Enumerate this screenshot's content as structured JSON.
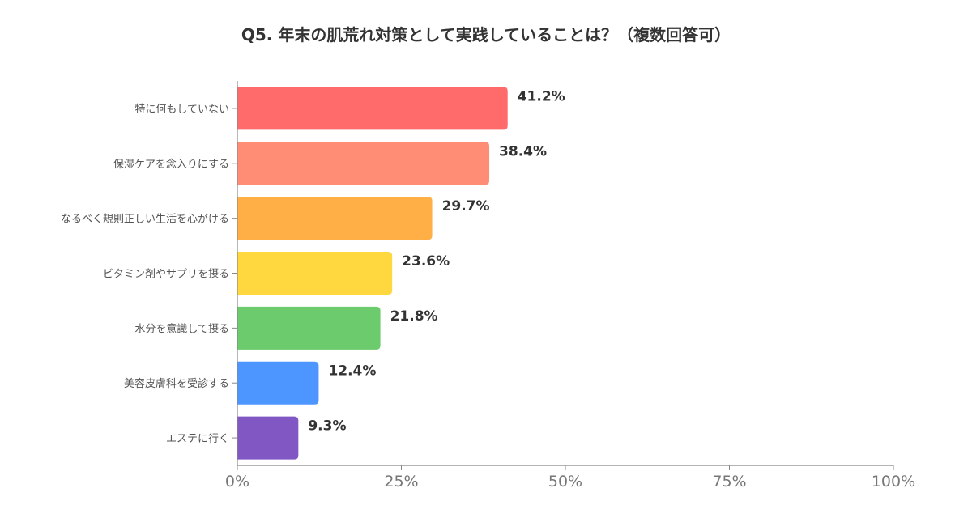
{
  "chart_data": {
    "type": "bar",
    "orientation": "horizontal",
    "title": "Q5. 年末の肌荒れ対策として実践していることは？（複数回答可）",
    "categories": [
      "特に何もしていない",
      "保湿ケアを念入りにする",
      "なるべく規則正しい生活を心がける",
      "ビタミン剤やサプリを摂る",
      "水分を意識して摂る",
      "美容皮膚科を受診する",
      "エステに行く"
    ],
    "values": [
      41.2,
      38.4,
      29.7,
      23.6,
      21.8,
      12.4,
      9.3
    ],
    "value_labels": [
      "41.2%",
      "38.4%",
      "29.7%",
      "23.6%",
      "21.8%",
      "12.4%",
      "9.3%"
    ],
    "colors": [
      "#ff6b6b",
      "#ff8c75",
      "#ffaf45",
      "#ffd73f",
      "#6ccb6c",
      "#4d96ff",
      "#8157c4"
    ],
    "xlim": [
      0,
      100
    ],
    "xticks": [
      0,
      25,
      50,
      75,
      100
    ],
    "xtick_labels": [
      "0%",
      "25%",
      "50%",
      "75%",
      "100%"
    ],
    "xlabel": "",
    "ylabel": "",
    "grid": false,
    "legend": "none"
  }
}
